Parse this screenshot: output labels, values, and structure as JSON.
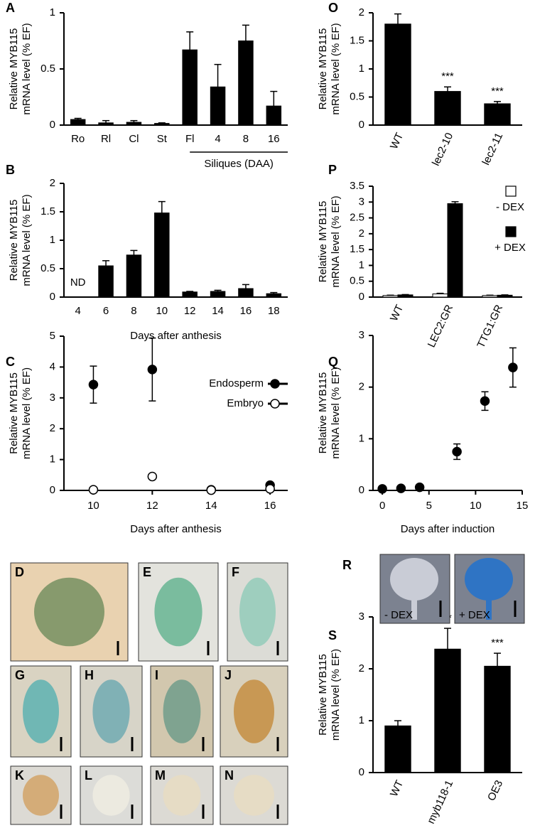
{
  "chart_data": [
    {
      "panel": "A",
      "type": "bar",
      "ylabel": [
        "Relative MYB115",
        "mRNA level (% EF)"
      ],
      "categories": [
        "Ro",
        "Rl",
        "Cl",
        "St",
        "Fl",
        "4",
        "8",
        "16"
      ],
      "values": [
        0.05,
        0.02,
        0.025,
        0.015,
        0.67,
        0.34,
        0.75,
        0.17
      ],
      "errors": [
        0.01,
        0.02,
        0.015,
        0.005,
        0.16,
        0.2,
        0.14,
        0.13
      ],
      "group_label": "Siliques (DAA)",
      "color": "#000000",
      "ylim": [
        0,
        1
      ],
      "yticks": [
        0,
        0.5,
        1
      ]
    },
    {
      "panel": "B",
      "type": "bar",
      "ylabel": [
        "Relative MYB115",
        "mRNA level (% EF)"
      ],
      "xlabel": "Days after anthesis",
      "categories": [
        "4",
        "6",
        "8",
        "10",
        "12",
        "14",
        "16",
        "18"
      ],
      "values": [
        null,
        0.55,
        0.74,
        1.48,
        0.09,
        0.1,
        0.15,
        0.06
      ],
      "errors": [
        null,
        0.09,
        0.08,
        0.2,
        0.01,
        0.02,
        0.07,
        0.02
      ],
      "annotations": [
        "ND",
        null,
        null,
        null,
        null,
        null,
        null,
        null
      ],
      "color": "#000000",
      "ylim": [
        0,
        2
      ],
      "yticks": [
        0,
        0.5,
        1,
        1.5,
        2
      ]
    },
    {
      "panel": "C",
      "type": "line",
      "ylabel": [
        "Relative MYB115",
        "mRNA level (% EF)"
      ],
      "xlabel": "Days after anthesis",
      "x": [
        10,
        12,
        14,
        16
      ],
      "series": [
        {
          "name": "Endosperm",
          "color": "#000000",
          "values": [
            3.43,
            3.92,
            0.02,
            0.17
          ],
          "errors": [
            0.6,
            1.02,
            0.02,
            0.02
          ]
        },
        {
          "name": "Embryo",
          "color": "#ffffff",
          "values": [
            0.02,
            0.45,
            0.01,
            0.05
          ],
          "errors": [
            0.01,
            0.03,
            0.01,
            0.01
          ]
        }
      ],
      "xlim": [
        9,
        16.6
      ],
      "xticks": [
        10,
        12,
        14,
        16
      ],
      "ylim": [
        0,
        5
      ],
      "yticks": [
        0,
        1,
        2,
        3,
        4,
        5
      ]
    },
    {
      "panel": "O",
      "type": "bar",
      "ylabel": [
        "Relative MYB115",
        "mRNA level (% EF)"
      ],
      "categories": [
        "WT",
        "lec2-10",
        "lec2-11"
      ],
      "values": [
        1.8,
        0.6,
        0.38
      ],
      "errors": [
        0.18,
        0.08,
        0.04
      ],
      "annotations": [
        null,
        "***",
        "***"
      ],
      "color": "#000000",
      "ylim": [
        0,
        2
      ],
      "yticks": [
        0,
        0.5,
        1,
        1.5,
        2
      ]
    },
    {
      "panel": "P",
      "type": "bar",
      "ylabel": [
        "Relative MYB115",
        "mRNA level (% EF)"
      ],
      "categories": [
        "WT",
        "LEC2:GR",
        "TTG1:GR"
      ],
      "series": [
        {
          "name": "- DEX",
          "color": "#ffffff",
          "values": [
            0.05,
            0.1,
            0.05
          ],
          "errors": [
            0.01,
            0.02,
            0.01
          ]
        },
        {
          "name": "+ DEX",
          "color": "#000000",
          "values": [
            0.07,
            2.95,
            0.06
          ],
          "errors": [
            0.01,
            0.06,
            0.01
          ]
        }
      ],
      "ylim": [
        0,
        3.5
      ],
      "yticks": [
        0,
        0.5,
        1,
        1.5,
        2,
        2.5,
        3,
        3.5
      ]
    },
    {
      "panel": "Q",
      "type": "line",
      "ylabel": [
        "Relative MYB115",
        "mRNA level (% EF)"
      ],
      "xlabel": "Days after induction",
      "x": [
        0,
        2,
        4,
        8,
        11,
        14
      ],
      "series": [
        {
          "color": "#000000",
          "values": [
            0.03,
            0.04,
            0.06,
            0.75,
            1.73,
            2.38
          ],
          "errors": [
            0.02,
            0.02,
            0.02,
            0.15,
            0.18,
            0.38
          ]
        }
      ],
      "xlim": [
        -1,
        15
      ],
      "xticks": [
        0,
        5,
        10,
        15
      ],
      "ylim": [
        0,
        3
      ],
      "yticks": [
        0,
        1,
        2,
        3
      ]
    },
    {
      "panel": "S",
      "type": "bar",
      "ylabel": [
        "Relative MYB115",
        "mRNA level (% EF)"
      ],
      "categories": [
        "WT",
        "myb118-1",
        "OE3"
      ],
      "values": [
        0.9,
        2.38,
        2.05
      ],
      "errors": [
        0.1,
        0.4,
        0.25
      ],
      "annotations": [
        null,
        "**",
        "***"
      ],
      "color": "#000000",
      "ylim": [
        0,
        3
      ],
      "yticks": [
        0,
        1,
        2,
        3
      ]
    }
  ],
  "images": [
    {
      "panel": "D"
    },
    {
      "panel": "E"
    },
    {
      "panel": "F"
    },
    {
      "panel": "G"
    },
    {
      "panel": "H"
    },
    {
      "panel": "I"
    },
    {
      "panel": "J"
    },
    {
      "panel": "K"
    },
    {
      "panel": "L"
    },
    {
      "panel": "M"
    },
    {
      "panel": "N"
    },
    {
      "panel": "R",
      "captions": [
        "- DEX",
        "+ DEX"
      ]
    }
  ]
}
